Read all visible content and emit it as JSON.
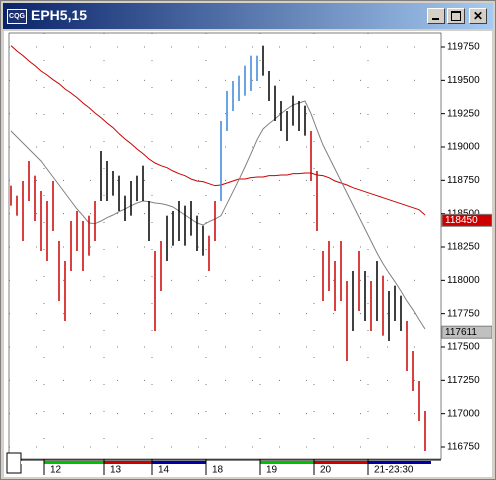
{
  "window": {
    "title": "EPH5,15",
    "icon": "CQG"
  },
  "chart_data": {
    "type": "range-bar",
    "categories": [
      null,
      null,
      null,
      null,
      null,
      null,
      "12",
      null,
      null,
      null,
      null,
      null,
      null,
      null,
      null,
      null,
      "13",
      null,
      null,
      null,
      null,
      null,
      null,
      null,
      "14",
      null,
      null,
      null,
      null,
      null,
      null,
      null,
      null,
      "18",
      null,
      null,
      null,
      null,
      null,
      null,
      null,
      null,
      "19",
      null,
      null,
      null,
      null,
      null,
      null,
      null,
      null,
      "20",
      null,
      null,
      null,
      null,
      null,
      null,
      null,
      null,
      "21-23:30",
      null,
      null,
      null,
      null,
      null,
      null,
      null,
      null,
      null
    ],
    "high": [
      118710,
      118635,
      118745,
      118895,
      118785,
      118670,
      118595,
      118745,
      118295,
      118145,
      118445,
      118520,
      118445,
      118485,
      118595,
      118970,
      118895,
      118820,
      118785,
      118635,
      118745,
      118785,
      118860,
      118595,
      118220,
      118295,
      118485,
      118520,
      118595,
      118560,
      118595,
      118485,
      118410,
      118335,
      118595,
      119195,
      119420,
      119495,
      119535,
      119610,
      119685,
      119685,
      119760,
      119570,
      119460,
      119345,
      119270,
      119385,
      119345,
      119310,
      119120,
      118820,
      118220,
      118295,
      118145,
      118295,
      117995,
      118070,
      118220,
      118070,
      117995,
      118145,
      118035,
      117920,
      117960,
      117885,
      117695,
      117470,
      117245,
      117020
    ],
    "low": [
      118560,
      118485,
      118295,
      118595,
      118445,
      118220,
      118145,
      118370,
      117845,
      117695,
      118070,
      118220,
      118070,
      118185,
      118295,
      118595,
      118595,
      118635,
      118520,
      118445,
      118485,
      118595,
      118595,
      118295,
      117620,
      117920,
      118145,
      118260,
      118295,
      118260,
      118335,
      118220,
      118185,
      118070,
      118295,
      118595,
      119120,
      119270,
      119345,
      119385,
      119420,
      119495,
      119535,
      119345,
      119195,
      119120,
      119045,
      119160,
      119120,
      119085,
      118745,
      118370,
      117845,
      117920,
      117770,
      117845,
      117395,
      117620,
      117770,
      117695,
      117620,
      117695,
      117585,
      117545,
      117695,
      117620,
      117320,
      117170,
      116945,
      116720
    ],
    "bar_colors": [
      "#cc0000",
      "#cc0000",
      "#cc0000",
      "#cc0000",
      "#cc0000",
      "#cc0000",
      "#cc0000",
      "#cc0000",
      "#cc0000",
      "#cc0000",
      "#cc0000",
      "#cc0000",
      "#cc0000",
      "#cc0000",
      "#cc0000",
      "#000000",
      "#000000",
      "#000000",
      "#000000",
      "#000000",
      "#000000",
      "#000000",
      "#000000",
      "#000000",
      "#cc0000",
      "#cc0000",
      "#000000",
      "#000000",
      "#000000",
      "#000000",
      "#000000",
      "#000000",
      "#000000",
      "#cc0000",
      "#cc0000",
      "#3a86d8",
      "#3a86d8",
      "#3a86d8",
      "#3a86d8",
      "#3a86d8",
      "#3a86d8",
      "#3a86d8",
      "#000000",
      "#000000",
      "#000000",
      "#000000",
      "#000000",
      "#000000",
      "#000000",
      "#000000",
      "#cc0000",
      "#cc0000",
      "#cc0000",
      "#cc0000",
      "#cc0000",
      "#cc0000",
      "#cc0000",
      "#000000",
      "#cc0000",
      "#000000",
      "#cc0000",
      "#000000",
      "#cc0000",
      "#000000",
      "#000000",
      "#000000",
      "#cc0000",
      "#cc0000",
      "#cc0000",
      "#cc0000"
    ],
    "moving_averages": [
      {
        "color": "#cc0000",
        "values": [
          119760,
          119720,
          119685,
          119645,
          119610,
          119570,
          119540,
          119505,
          119475,
          119435,
          119405,
          119370,
          119330,
          119295,
          119255,
          119220,
          119180,
          119145,
          119100,
          119060,
          119025,
          118985,
          118950,
          118910,
          118880,
          118860,
          118845,
          118820,
          118800,
          118785,
          118760,
          118745,
          118740,
          118725,
          118710,
          118715,
          118730,
          118745,
          118760,
          118760,
          118770,
          118775,
          118775,
          118785,
          118785,
          118790,
          118790,
          118800,
          118800,
          118805,
          118805,
          118790,
          118785,
          118770,
          118745,
          118730,
          118715,
          118695,
          118680,
          118665,
          118650,
          118635,
          118620,
          118605,
          118590,
          118575,
          118560,
          118545,
          118530,
          118490
        ]
      },
      {
        "color": "#808080",
        "values": [
          119120,
          119075,
          119030,
          118985,
          118940,
          118895,
          118835,
          118775,
          118715,
          118655,
          118595,
          118535,
          118485,
          118430,
          118425,
          118445,
          118470,
          118490,
          118515,
          118535,
          118560,
          118580,
          118595,
          118590,
          118580,
          118575,
          118565,
          118550,
          118520,
          118490,
          118460,
          118430,
          118415,
          118440,
          118460,
          118485,
          118575,
          118665,
          118755,
          118850,
          118950,
          119055,
          119135,
          119175,
          119210,
          119250,
          119285,
          119315,
          119330,
          119345,
          119250,
          119130,
          119015,
          118925,
          118835,
          118745,
          118655,
          118565,
          118475,
          118385,
          118295,
          118205,
          118125,
          118055,
          117990,
          117920,
          117845,
          117780,
          117705,
          117635
        ]
      }
    ],
    "price_markers": [
      {
        "value": 118450,
        "color": "#cc0000",
        "text_color": "#ffffff"
      },
      {
        "value": 117611,
        "color": "#c0c0c0",
        "text_color": "#000000"
      }
    ],
    "ylim": [
      116660,
      119855
    ],
    "yticks": [
      116750,
      117000,
      117250,
      117500,
      117750,
      118000,
      118250,
      118500,
      118750,
      119000,
      119250,
      119500,
      119750
    ],
    "grid": true
  }
}
